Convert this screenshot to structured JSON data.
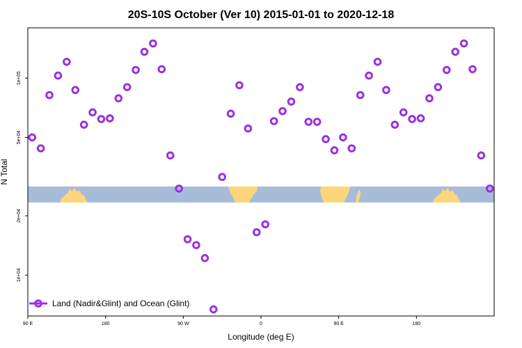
{
  "chart_data": {
    "type": "scatter",
    "title": "20S-10S October (Ver 10)   2015-01-01 to 2020-12-18",
    "xlabel": "Longitude (deg E)",
    "ylabel": "N Total",
    "x_axis": {
      "range": [
        90,
        630
      ],
      "ticks": [
        {
          "value": 90,
          "label": "90 E"
        },
        {
          "value": 180,
          "label": "180"
        },
        {
          "value": 270,
          "label": "90 W"
        },
        {
          "value": 360,
          "label": "0"
        },
        {
          "value": 450,
          "label": "90 E"
        },
        {
          "value": 540,
          "label": "180"
        }
      ]
    },
    "y_axis": {
      "scale": "log",
      "range": [
        6200,
        180000
      ],
      "ticks": [
        {
          "value": 10000,
          "label": "1e+04"
        },
        {
          "value": 20000,
          "label": "2e+04"
        },
        {
          "value": 50000,
          "label": "5e+04"
        },
        {
          "value": 100000,
          "label": "1e+05"
        }
      ]
    },
    "grid": false,
    "legend_position": "bottom-left",
    "colors": {
      "series": "#9b30e0",
      "ocean": "#a7bcd9",
      "land": "#fcd67a"
    },
    "series": [
      {
        "name": "Land (Nadir&Glint) and Ocean (Glint)",
        "x": [
          95,
          105,
          115,
          125,
          135,
          145,
          155,
          165,
          175,
          185,
          195,
          205,
          215,
          225,
          235,
          245,
          255,
          265,
          275,
          285,
          295,
          305,
          315,
          325,
          335,
          345,
          355,
          365,
          375,
          385,
          395,
          405,
          415,
          425,
          435,
          445,
          455,
          465,
          475,
          485,
          495,
          505,
          515,
          525,
          535,
          545,
          555,
          565,
          575,
          585,
          595,
          605,
          615,
          625
        ],
        "y": [
          50000,
          44000,
          82000,
          103000,
          121000,
          87000,
          58000,
          67000,
          62000,
          62500,
          79000,
          90000,
          110000,
          136000,
          150000,
          111000,
          40500,
          27500,
          15200,
          14200,
          12200,
          6700,
          31500,
          66000,
          92000,
          55500,
          16500,
          18100,
          60500,
          68000,
          76000,
          90000,
          60000,
          60000,
          49000,
          43000,
          50000,
          44000,
          82000,
          103000,
          121000,
          87000,
          58000,
          67000,
          62000,
          62500,
          79000,
          90000,
          110000,
          136000,
          150000,
          111000,
          40500,
          27500
        ]
      }
    ]
  }
}
